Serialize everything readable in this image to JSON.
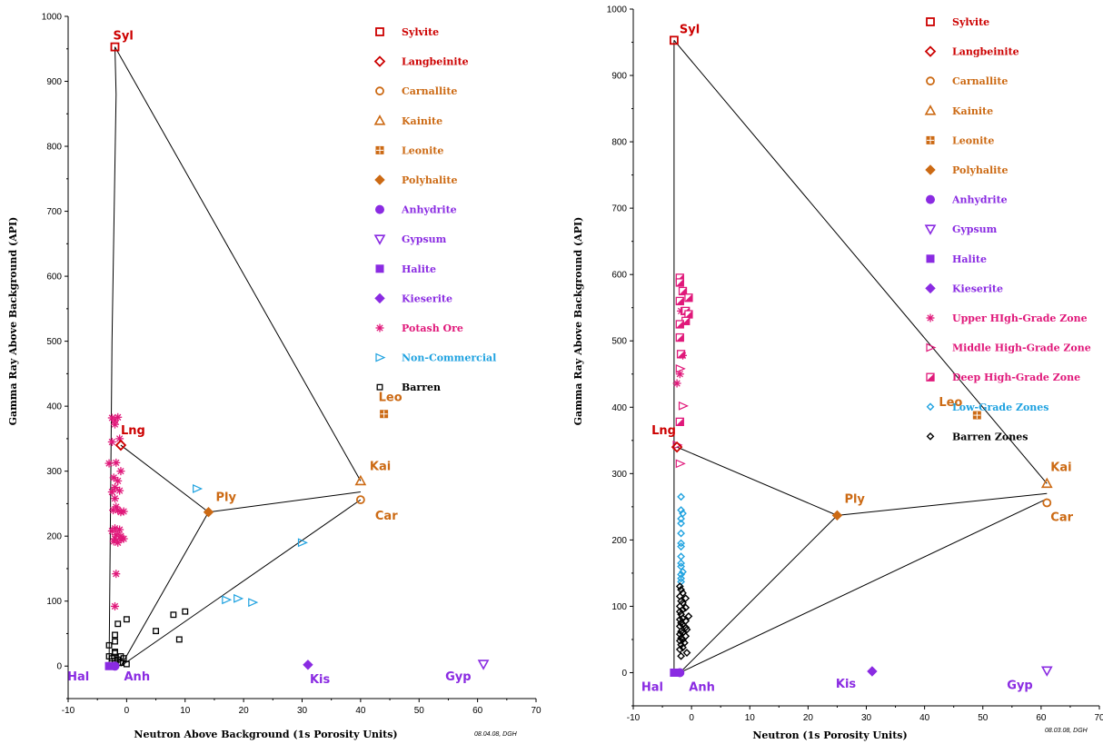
{
  "colors": {
    "red": "#cc0000",
    "orange": "#cc6a14",
    "purple": "#8a2be2",
    "pink": "#e0187a",
    "cyan": "#1fa2e0",
    "black": "#000000"
  },
  "chart_data": [
    {
      "type": "scatter",
      "xlabel": "Neutron Above Background (1s Porosity Units)",
      "ylabel": "Gamma Ray Above Background (API)",
      "xlim": [
        -10,
        70
      ],
      "ylim": [
        -50,
        1000
      ],
      "xticks": [
        -10,
        0,
        10,
        20,
        30,
        40,
        50,
        60,
        70
      ],
      "yticks": [
        0,
        100,
        200,
        300,
        400,
        500,
        600,
        700,
        800,
        900,
        1000
      ],
      "stamp": "08.04.08, DGH",
      "legend": [
        {
          "label": "Sylvite",
          "marker": "square-open",
          "color": "red"
        },
        {
          "label": "Langbeinite",
          "marker": "diamond-open",
          "color": "red"
        },
        {
          "label": "Carnallite",
          "marker": "circle-open",
          "color": "orange"
        },
        {
          "label": "Kainite",
          "marker": "triangle-open",
          "color": "orange"
        },
        {
          "label": "Leonite",
          "marker": "square-grid",
          "color": "orange"
        },
        {
          "label": "Polyhalite",
          "marker": "diamond-filled",
          "color": "orange"
        },
        {
          "label": "Anhydrite",
          "marker": "circle-filled",
          "color": "purple"
        },
        {
          "label": "Gypsum",
          "marker": "triangle-down-open",
          "color": "purple"
        },
        {
          "label": "Halite",
          "marker": "square-filled",
          "color": "purple"
        },
        {
          "label": "Kieserite",
          "marker": "diamond-filled",
          "color": "purple"
        },
        {
          "label": "Potash Ore",
          "marker": "asterisk",
          "color": "pink"
        },
        {
          "label": "Non-Commercial",
          "marker": "triangle-right-open",
          "color": "cyan"
        },
        {
          "label": "Barren",
          "marker": "square-small",
          "color": "black"
        }
      ],
      "minerals": [
        {
          "label": "Syl",
          "x": -2,
          "y": 953,
          "marker": "square-open",
          "color": "red",
          "dx": -2,
          "dy": -8
        },
        {
          "label": "Lng",
          "x": -1,
          "y": 340,
          "marker": "diamond-open",
          "color": "red",
          "dx": 0,
          "dy": -12
        },
        {
          "label": "Leo",
          "x": 44,
          "y": 388,
          "marker": "square-grid",
          "color": "orange",
          "dx": -6,
          "dy": -14
        },
        {
          "label": "Kai",
          "x": 40,
          "y": 285,
          "marker": "triangle-open",
          "color": "orange",
          "dx": 10,
          "dy": -12
        },
        {
          "label": "Ply",
          "x": 14,
          "y": 237,
          "marker": "diamond-filled",
          "color": "orange",
          "dx": 8,
          "dy": -12
        },
        {
          "label": "Car",
          "x": 40,
          "y": 256,
          "marker": "circle-open",
          "color": "orange",
          "dx": 16,
          "dy": 22
        },
        {
          "label": "Hal",
          "x": -3,
          "y": 0,
          "marker": "square-filled",
          "color": "purple",
          "dx": -46,
          "dy": 16
        },
        {
          "label": "Anh",
          "x": -2,
          "y": 0,
          "marker": "circle-filled",
          "color": "purple",
          "dx": 10,
          "dy": 16
        },
        {
          "label": "Kis",
          "x": 31,
          "y": 2,
          "marker": "diamond-filled",
          "color": "purple",
          "dx": 2,
          "dy": 20
        },
        {
          "label": "Gyp",
          "x": 61,
          "y": 3,
          "marker": "triangle-down-open",
          "color": "purple",
          "dx": -42,
          "dy": 18
        }
      ],
      "lines": [
        [
          [
            -2,
            953
          ],
          [
            -1.8,
            880
          ],
          [
            -2.5,
            500
          ],
          [
            -3,
            0
          ]
        ],
        [
          [
            -2,
            953
          ],
          [
            40,
            285
          ]
        ],
        [
          [
            -1,
            340
          ],
          [
            14,
            237
          ]
        ],
        [
          [
            14,
            237
          ],
          [
            40,
            268
          ]
        ],
        [
          [
            14,
            237
          ],
          [
            -1,
            0
          ]
        ],
        [
          [
            -1,
            0
          ],
          [
            40,
            256
          ]
        ]
      ],
      "series": [
        {
          "name": "Potash Ore",
          "marker": "asterisk",
          "color": "pink",
          "x": [
            -2.5,
            -2,
            -1.5,
            -2,
            -1.2,
            -2.5,
            -3,
            -1.8,
            -2.2,
            -1,
            -1.5,
            -2,
            -2.5,
            -1.2,
            -2,
            -1.8,
            -2.3,
            -1,
            -1.5,
            -0.5,
            -2,
            -2.5,
            -1.8,
            -1.2,
            -2,
            -1,
            -0.5,
            -1.5,
            -2.2,
            -1.8,
            -1,
            -2
          ],
          "y": [
            382,
            378,
            383,
            372,
            350,
            345,
            312,
            313,
            290,
            300,
            285,
            275,
            268,
            270,
            258,
            245,
            240,
            237,
            240,
            238,
            212,
            208,
            202,
            210,
            196,
            195,
            196,
            190,
            192,
            142,
            200,
            92
          ]
        },
        {
          "name": "Non-Commercial",
          "marker": "triangle-right-open",
          "color": "cyan",
          "x": [
            12,
            30,
            17,
            19,
            21.5
          ],
          "y": [
            273,
            190,
            102,
            104,
            98
          ]
        },
        {
          "name": "Barren",
          "marker": "square-small",
          "color": "black",
          "x": [
            -3,
            -2,
            -2,
            -1.5,
            -2,
            -1,
            -2.5,
            -2,
            -1.5,
            -1,
            -0.5,
            0,
            0,
            5,
            8,
            9,
            10,
            -3,
            -1.5,
            -2
          ],
          "y": [
            32,
            48,
            38,
            65,
            20,
            15,
            12,
            8,
            10,
            5,
            12,
            3,
            72,
            54,
            79,
            41,
            84,
            15,
            5,
            22
          ]
        }
      ]
    },
    {
      "type": "scatter",
      "xlabel": "Neutron (1s Porosity Units)",
      "ylabel": "Gamma Ray Above Background (API)",
      "xlim": [
        -10,
        70
      ],
      "ylim": [
        -50,
        1000
      ],
      "xticks": [
        -10,
        0,
        10,
        20,
        30,
        40,
        50,
        60,
        70
      ],
      "yticks": [
        0,
        100,
        200,
        300,
        400,
        500,
        600,
        700,
        800,
        900,
        1000
      ],
      "stamp": "08.03.08, DGH",
      "legend": [
        {
          "label": "Sylvite",
          "marker": "square-open",
          "color": "red"
        },
        {
          "label": "Langbeinite",
          "marker": "diamond-open",
          "color": "red"
        },
        {
          "label": "Carnallite",
          "marker": "circle-open",
          "color": "orange"
        },
        {
          "label": "Kainite",
          "marker": "triangle-open",
          "color": "orange"
        },
        {
          "label": "Leonite",
          "marker": "square-grid",
          "color": "orange"
        },
        {
          "label": "Polyhalite",
          "marker": "diamond-filled",
          "color": "orange"
        },
        {
          "label": "Anhydrite",
          "marker": "circle-filled",
          "color": "purple"
        },
        {
          "label": "Gypsum",
          "marker": "triangle-down-open",
          "color": "purple"
        },
        {
          "label": "Halite",
          "marker": "square-filled",
          "color": "purple"
        },
        {
          "label": "Kieserite",
          "marker": "diamond-filled",
          "color": "purple"
        },
        {
          "label": "Upper HIgh-Grade Zone",
          "marker": "asterisk",
          "color": "pink"
        },
        {
          "label": "Middle High-Grade Zone",
          "marker": "triangle-right-open",
          "color": "pink"
        },
        {
          "label": "Deep High-Grade Zone",
          "marker": "square-half",
          "color": "pink"
        },
        {
          "label": "Low-Grade Zones",
          "marker": "diamond-small",
          "color": "cyan"
        },
        {
          "label": "Barren Zones",
          "marker": "diamond-small",
          "color": "black"
        }
      ],
      "minerals": [
        {
          "label": "Syl",
          "x": -3,
          "y": 953,
          "marker": "square-open",
          "color": "red",
          "dx": 6,
          "dy": -8
        },
        {
          "label": "Lng",
          "x": -2.5,
          "y": 340,
          "marker": "diamond-open",
          "color": "red",
          "dx": -28,
          "dy": -14
        },
        {
          "label": "Leo",
          "x": 49,
          "y": 388,
          "marker": "square-grid",
          "color": "orange",
          "dx": -42,
          "dy": -10
        },
        {
          "label": "Kai",
          "x": 61,
          "y": 285,
          "marker": "triangle-open",
          "color": "orange",
          "dx": 4,
          "dy": -14
        },
        {
          "label": "Ply",
          "x": 25,
          "y": 237,
          "marker": "diamond-filled",
          "color": "orange",
          "dx": 8,
          "dy": -14
        },
        {
          "label": "Car",
          "x": 61,
          "y": 256,
          "marker": "circle-open",
          "color": "orange",
          "dx": 4,
          "dy": 20
        },
        {
          "label": "Hal",
          "x": -3,
          "y": 0,
          "marker": "square-filled",
          "color": "purple",
          "dx": -36,
          "dy": 20
        },
        {
          "label": "Anh",
          "x": -2,
          "y": 0,
          "marker": "circle-filled",
          "color": "purple",
          "dx": 10,
          "dy": 20
        },
        {
          "label": "Kis",
          "x": 31,
          "y": 2,
          "marker": "diamond-filled",
          "color": "purple",
          "dx": -40,
          "dy": 18
        },
        {
          "label": "Gyp",
          "x": 61,
          "y": 3,
          "marker": "triangle-down-open",
          "color": "purple",
          "dx": -44,
          "dy": 20
        }
      ],
      "lines": [
        [
          [
            -3,
            953
          ],
          [
            -3,
            0
          ]
        ],
        [
          [
            -3,
            953
          ],
          [
            61,
            285
          ]
        ],
        [
          [
            -2.5,
            340
          ],
          [
            25,
            237
          ]
        ],
        [
          [
            25,
            237
          ],
          [
            61,
            270
          ]
        ],
        [
          [
            25,
            237
          ],
          [
            -2,
            0
          ]
        ],
        [
          [
            -2,
            0
          ],
          [
            61,
            262
          ]
        ]
      ],
      "series": [
        {
          "name": "Upper HIgh-Grade Zone",
          "marker": "asterisk",
          "color": "pink",
          "x": [
            -1.5,
            -2,
            -2.5,
            -1.8
          ],
          "y": [
            478,
            450,
            436,
            545
          ]
        },
        {
          "name": "Middle High-Grade Zone",
          "marker": "triangle-right-open",
          "color": "pink",
          "x": [
            -2,
            -2.5,
            -2,
            -1.5
          ],
          "y": [
            458,
            343,
            315,
            402
          ]
        },
        {
          "name": "Deep High-Grade Zone",
          "marker": "square-half",
          "color": "pink",
          "x": [
            -2,
            -2,
            -1.5,
            -0.5,
            -2,
            -1,
            -0.5,
            -1,
            -2,
            -2,
            -1.8,
            -2
          ],
          "y": [
            595,
            588,
            575,
            565,
            560,
            545,
            540,
            530,
            525,
            505,
            480,
            378
          ]
        },
        {
          "name": "Low-Grade Zones",
          "marker": "diamond-small",
          "color": "cyan",
          "x": [
            -1.8,
            -1.8,
            -1.5,
            -1.8,
            -1.8,
            -1.8,
            -1.8,
            -1.8,
            -1.8,
            -1.8,
            -1.8,
            -1.5,
            -1.8,
            -1.8,
            -1.8
          ],
          "y": [
            265,
            245,
            240,
            232,
            225,
            210,
            195,
            190,
            175,
            165,
            160,
            152,
            148,
            142,
            137
          ]
        },
        {
          "name": "Barren Zones",
          "marker": "diamond-small",
          "color": "black",
          "x": [
            -2,
            -1.8,
            -1.5,
            -2,
            -1,
            -1.8,
            -1.5,
            -2,
            -1,
            -1.5,
            -2,
            -1.8,
            -0.5,
            -1.5,
            -2,
            -1,
            -1.8,
            -1.5,
            -2,
            -1,
            -0.8,
            -1.8,
            -1.5,
            -2,
            -1,
            -1.8,
            -1.5,
            -2,
            -1.2,
            -1.8,
            -1.5,
            -2,
            -0.8,
            -1.8
          ],
          "y": [
            130,
            125,
            120,
            115,
            112,
            108,
            105,
            100,
            98,
            95,
            92,
            88,
            85,
            82,
            80,
            78,
            75,
            72,
            70,
            68,
            65,
            62,
            60,
            58,
            55,
            52,
            50,
            48,
            45,
            42,
            38,
            35,
            30,
            25
          ]
        }
      ]
    }
  ]
}
